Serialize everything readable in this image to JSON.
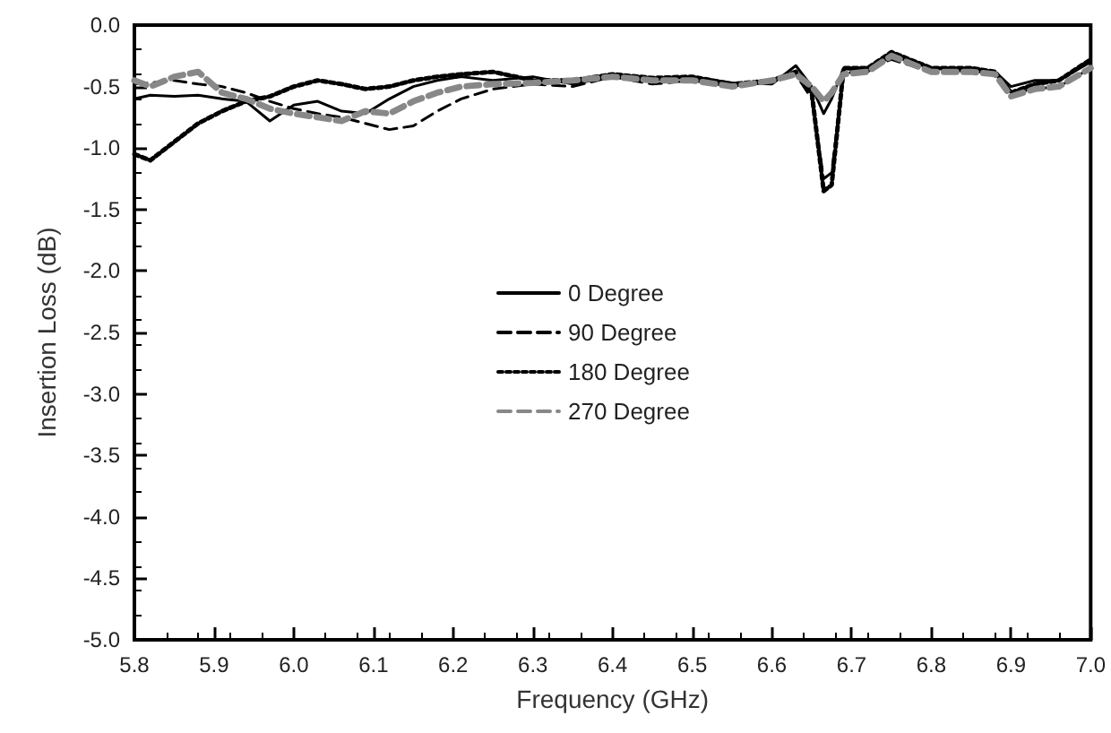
{
  "chart_data": {
    "type": "line",
    "xlabel": "Frequency (GHz)",
    "ylabel": "Insertion Loss (dB)",
    "x": [
      5.8,
      5.82,
      5.85,
      5.88,
      5.91,
      5.94,
      5.97,
      6.0,
      6.03,
      6.06,
      6.09,
      6.12,
      6.15,
      6.18,
      6.21,
      6.25,
      6.3,
      6.35,
      6.4,
      6.45,
      6.5,
      6.55,
      6.6,
      6.63,
      6.65,
      6.665,
      6.675,
      6.69,
      6.72,
      6.75,
      6.8,
      6.85,
      6.88,
      6.9,
      6.93,
      6.96,
      7.0
    ],
    "series": [
      {
        "name": "0 Degree",
        "color": "#000000",
        "line_style": "solid",
        "values": [
          -0.6,
          -0.57,
          -0.58,
          -0.57,
          -0.6,
          -0.62,
          -0.78,
          -0.65,
          -0.62,
          -0.7,
          -0.72,
          -0.6,
          -0.5,
          -0.45,
          -0.42,
          -0.45,
          -0.42,
          -0.48,
          -0.42,
          -0.45,
          -0.42,
          -0.47,
          -0.48,
          -0.33,
          -0.5,
          -0.72,
          -0.6,
          -0.35,
          -0.38,
          -0.25,
          -0.35,
          -0.38,
          -0.38,
          -0.5,
          -0.45,
          -0.45,
          -0.3
        ]
      },
      {
        "name": "90 Degree",
        "color": "#000000",
        "line_style": "dashed",
        "values": [
          -0.48,
          -0.47,
          -0.45,
          -0.48,
          -0.5,
          -0.55,
          -0.62,
          -0.68,
          -0.72,
          -0.75,
          -0.8,
          -0.85,
          -0.82,
          -0.7,
          -0.6,
          -0.52,
          -0.48,
          -0.5,
          -0.42,
          -0.48,
          -0.45,
          -0.5,
          -0.45,
          -0.4,
          -0.6,
          -1.25,
          -1.2,
          -0.4,
          -0.35,
          -0.28,
          -0.38,
          -0.35,
          -0.4,
          -0.55,
          -0.52,
          -0.5,
          -0.35
        ]
      },
      {
        "name": "180 Degree",
        "color": "#000000",
        "line_style": "dotted",
        "values": [
          -1.05,
          -1.1,
          -0.95,
          -0.8,
          -0.7,
          -0.62,
          -0.58,
          -0.5,
          -0.45,
          -0.48,
          -0.52,
          -0.5,
          -0.45,
          -0.42,
          -0.4,
          -0.38,
          -0.45,
          -0.45,
          -0.4,
          -0.43,
          -0.42,
          -0.48,
          -0.45,
          -0.38,
          -0.55,
          -1.35,
          -1.3,
          -0.35,
          -0.35,
          -0.22,
          -0.35,
          -0.35,
          -0.38,
          -0.55,
          -0.48,
          -0.45,
          -0.28
        ]
      },
      {
        "name": "270 Degree",
        "color": "#888888",
        "line_style": "dashed",
        "values": [
          -0.45,
          -0.5,
          -0.42,
          -0.38,
          -0.55,
          -0.6,
          -0.68,
          -0.72,
          -0.75,
          -0.78,
          -0.7,
          -0.72,
          -0.62,
          -0.55,
          -0.5,
          -0.48,
          -0.47,
          -0.45,
          -0.42,
          -0.45,
          -0.45,
          -0.5,
          -0.45,
          -0.4,
          -0.5,
          -0.62,
          -0.55,
          -0.4,
          -0.38,
          -0.25,
          -0.38,
          -0.38,
          -0.4,
          -0.58,
          -0.52,
          -0.5,
          -0.35
        ]
      }
    ],
    "xlim": [
      5.8,
      7.0
    ],
    "xticks": [
      {
        "value": 5.8,
        "label": "5.8"
      },
      {
        "value": 5.9,
        "label": "5.9"
      },
      {
        "value": 6.0,
        "label": "6.0"
      },
      {
        "value": 6.1,
        "label": "6.1"
      },
      {
        "value": 6.2,
        "label": "6.2"
      },
      {
        "value": 6.3,
        "label": "6.3"
      },
      {
        "value": 6.4,
        "label": "6.4"
      },
      {
        "value": 6.5,
        "label": "6.5"
      },
      {
        "value": 6.6,
        "label": "6.6"
      },
      {
        "value": 6.7,
        "label": "6.7"
      },
      {
        "value": 6.8,
        "label": "6.8"
      },
      {
        "value": 6.9,
        "label": "6.9"
      },
      {
        "value": 7.0,
        "label": "7.0"
      }
    ],
    "ylim": [
      -5.0,
      0.0
    ],
    "yticks": [
      {
        "value": -5.0,
        "label": "-5.0"
      },
      {
        "value": -4.5,
        "label": "-4.5"
      },
      {
        "value": -4.0,
        "label": "-4.0"
      },
      {
        "value": -3.5,
        "label": "-3.5"
      },
      {
        "value": -3.0,
        "label": "-3.0"
      },
      {
        "value": -2.5,
        "label": "-2.5"
      },
      {
        "value": -2.0,
        "label": "-2.0"
      },
      {
        "value": -1.5,
        "label": "-1.5"
      },
      {
        "value": -1.0,
        "label": "-1.0"
      },
      {
        "value": -0.5,
        "label": "-0.5"
      },
      {
        "value": 0.0,
        "label": "0.0"
      }
    ],
    "grid": false,
    "legend": "center",
    "marker": "none"
  }
}
